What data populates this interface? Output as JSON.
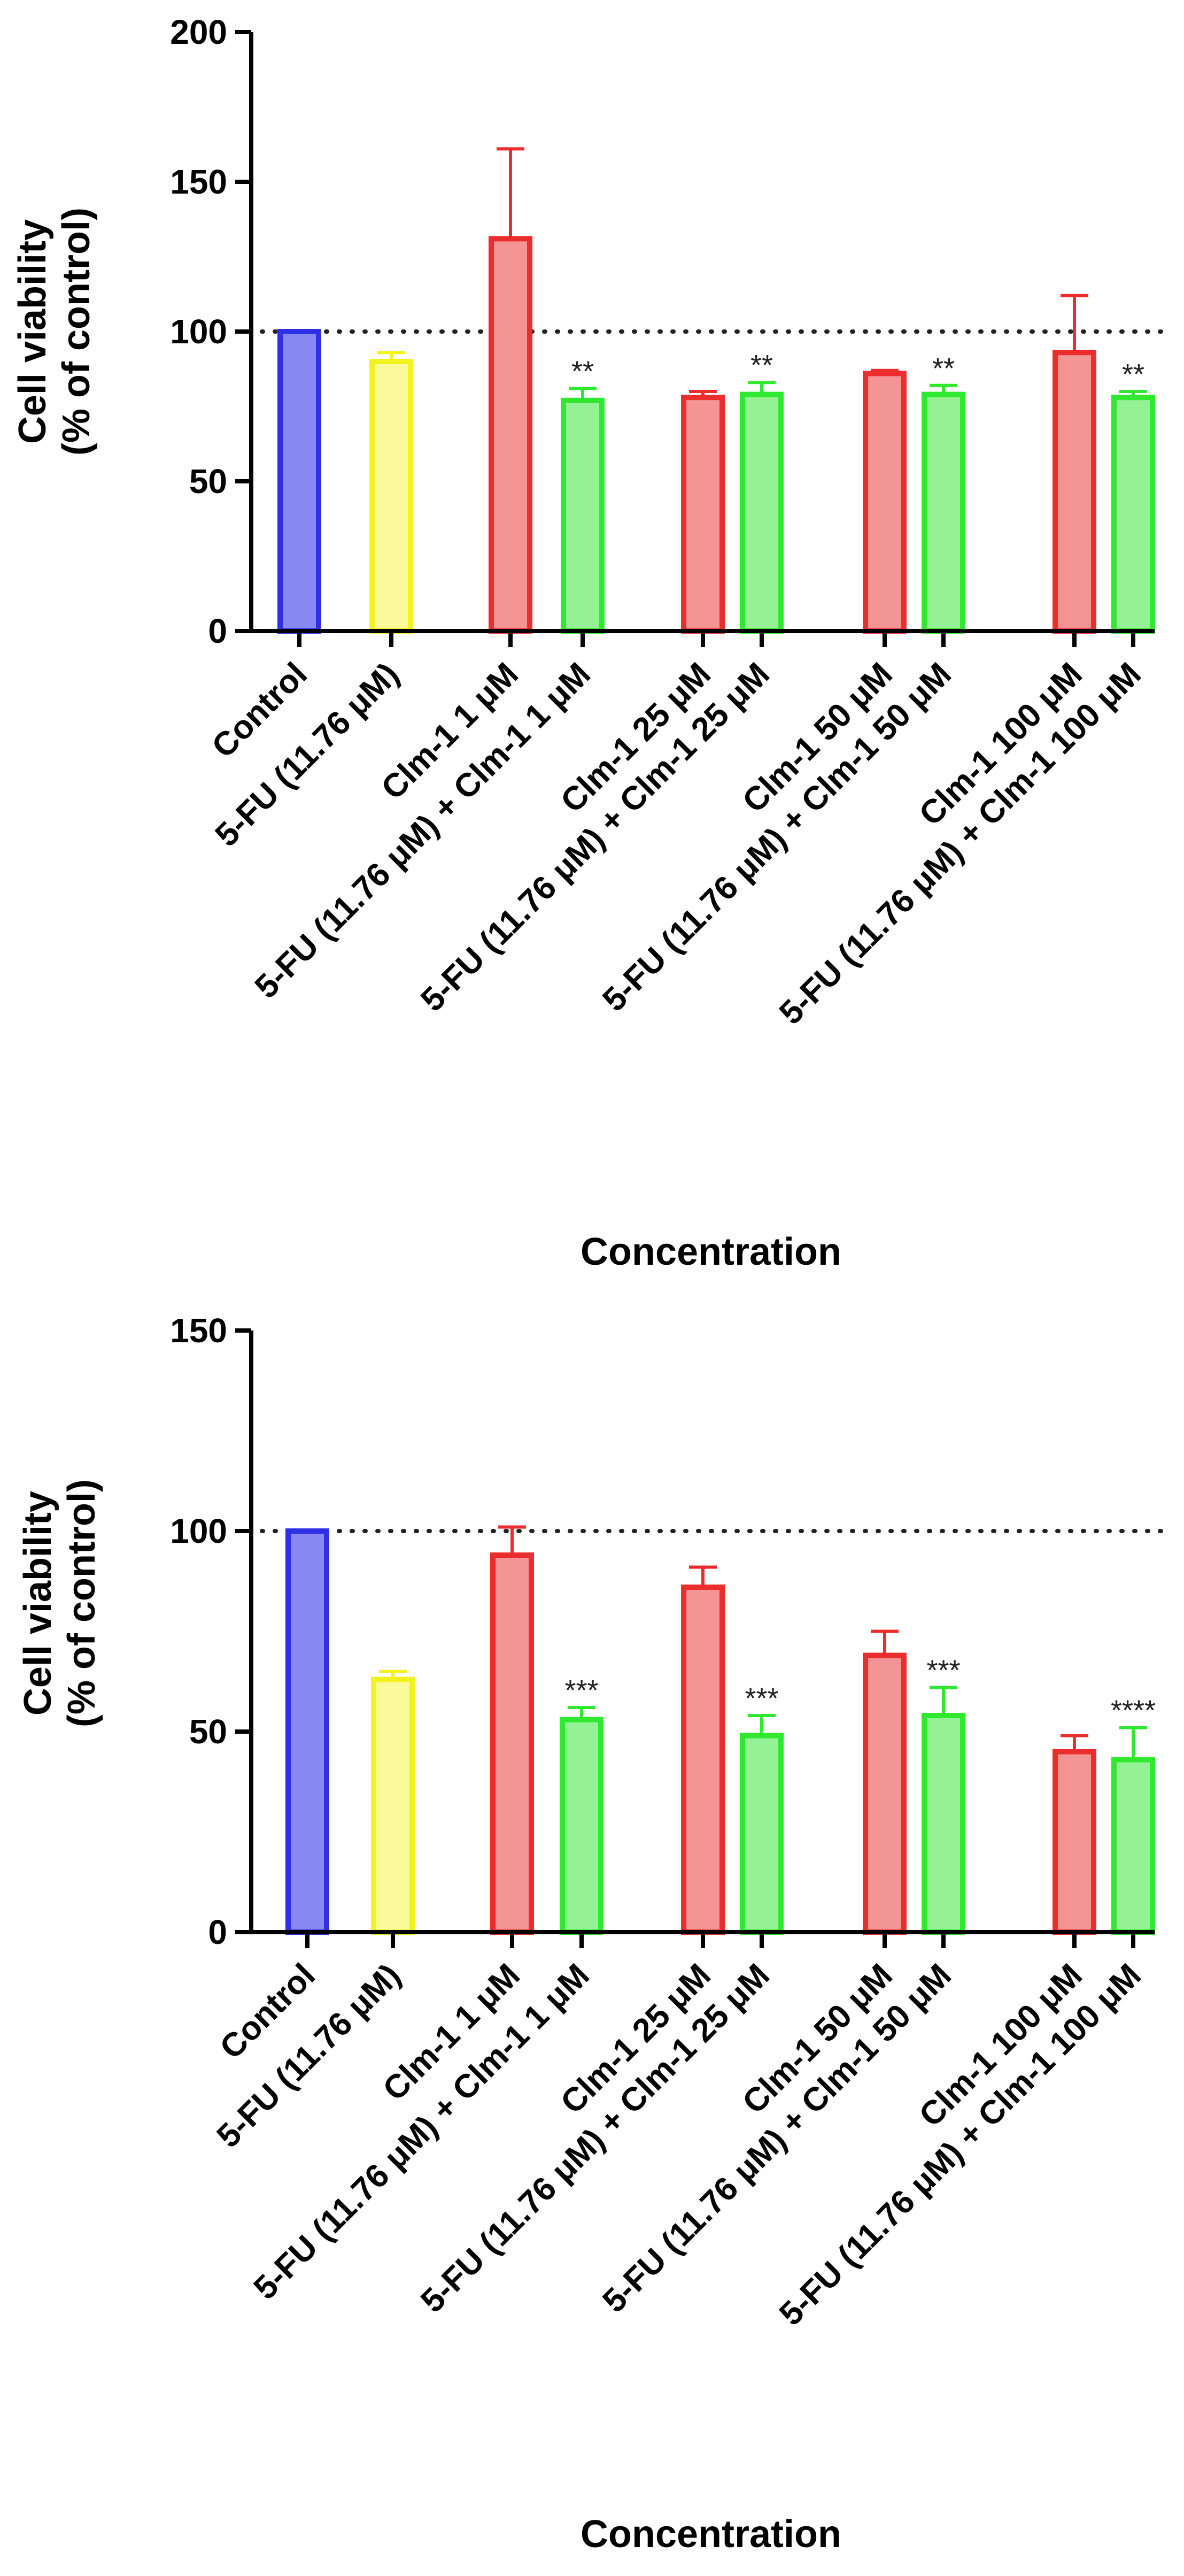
{
  "charts": [
    {
      "type": "bar",
      "ylabel_line1": "Cell viability",
      "ylabel_line2": "(% of control)",
      "xlabel": "Concentration",
      "ylim": [
        0,
        200
      ],
      "yticks": [
        0,
        50,
        100,
        150,
        200
      ],
      "reference_line": 100,
      "categories": [
        "Control",
        "5-FU (11.76 μM)",
        "Clm-1 1 μM",
        "5-FU (11.76 μM) + Clm-1 1 μM",
        "Clm-1 25 μM",
        "5-FU (11.76 μM) + Clm-1 25 μM",
        "Clm-1 50 μM",
        "5-FU (11.76 μM) + Clm-1 50 μM",
        "Clm-1 100 μM",
        "5-FU (11.76 μM) + Clm-1 100 μM"
      ],
      "values": [
        100,
        90,
        131,
        77,
        78,
        79,
        86,
        79,
        93,
        78
      ],
      "errors": [
        0,
        3,
        30,
        4,
        2,
        4,
        1,
        3,
        19,
        2
      ],
      "significance": [
        "",
        "",
        "",
        "**",
        "",
        "**",
        "",
        "**",
        "",
        "**"
      ]
    },
    {
      "type": "bar",
      "ylabel_line1": "Cell viability",
      "ylabel_line2": "(% of control)",
      "xlabel": "Concentration",
      "ylim": [
        0,
        150
      ],
      "yticks": [
        0,
        50,
        100,
        150
      ],
      "reference_line": 100,
      "categories": [
        "Control",
        "5-FU (11.76 μM)",
        "Clm-1 1 μM",
        "5-FU (11.76 μM) + Clm-1 1 μM",
        "Clm-1 25 μM",
        "5-FU (11.76 μM) + Clm-1 25 μM",
        "Clm-1 50 μM",
        "5-FU (11.76 μM) + Clm-1 50 μM",
        "Clm-1 100 μM",
        "5-FU (11.76 μM) + Clm-1 100 μM"
      ],
      "values": [
        100,
        63,
        94,
        53,
        86,
        49,
        69,
        54,
        45,
        43
      ],
      "errors": [
        0,
        2,
        7,
        3,
        5,
        5,
        6,
        7,
        4,
        8
      ],
      "significance": [
        "",
        "",
        "",
        "***",
        "",
        "***",
        "",
        "***",
        "",
        "****"
      ]
    }
  ],
  "chart_data": [
    {
      "type": "bar",
      "title": "",
      "xlabel": "Concentration",
      "ylabel": "Cell viability (% of control)",
      "ylim": [
        0,
        200
      ],
      "categories": [
        "Control",
        "5-FU (11.76 μM)",
        "Clm-1 1 μM",
        "5-FU (11.76 μM) + Clm-1 1 μM",
        "Clm-1 25 μM",
        "5-FU (11.76 μM) + Clm-1 25 μM",
        "Clm-1 50 μM",
        "5-FU (11.76 μM) + Clm-1 50 μM",
        "Clm-1 100 μM",
        "5-FU (11.76 μM) + Clm-1 100 μM"
      ],
      "values": [
        100,
        90,
        131,
        77,
        78,
        79,
        86,
        79,
        93,
        78
      ],
      "errors": [
        0,
        3,
        30,
        4,
        2,
        4,
        1,
        3,
        19,
        2
      ],
      "significance": [
        "",
        "",
        "",
        "**",
        "",
        "**",
        "",
        "**",
        "",
        "**"
      ],
      "reference_line": 100,
      "grid": false
    },
    {
      "type": "bar",
      "title": "",
      "xlabel": "Concentration",
      "ylabel": "Cell viability (% of control)",
      "ylim": [
        0,
        150
      ],
      "categories": [
        "Control",
        "5-FU (11.76 μM)",
        "Clm-1 1 μM",
        "5-FU (11.76 μM) + Clm-1 1 μM",
        "Clm-1 25 μM",
        "5-FU (11.76 μM) + Clm-1 25 μM",
        "Clm-1 50 μM",
        "5-FU (11.76 μM) + Clm-1 50 μM",
        "Clm-1 100 μM",
        "5-FU (11.76 μM) + Clm-1 100 μM"
      ],
      "values": [
        100,
        63,
        94,
        53,
        86,
        49,
        69,
        54,
        45,
        43
      ],
      "errors": [
        0,
        2,
        7,
        3,
        5,
        5,
        6,
        7,
        4,
        8
      ],
      "significance": [
        "",
        "",
        "",
        "***",
        "",
        "***",
        "",
        "***",
        "",
        "****"
      ],
      "reference_line": 100,
      "grid": false
    }
  ],
  "colors": {
    "control_stroke": "#2f2fe6",
    "control_fill": "#8888f2",
    "fu_stroke": "#f2f21e",
    "fu_fill": "#fafa9a",
    "clm_stroke": "#ec2d2d",
    "clm_fill": "#f49494",
    "combo_stroke": "#2fe82f",
    "combo_fill": "#94f294"
  }
}
